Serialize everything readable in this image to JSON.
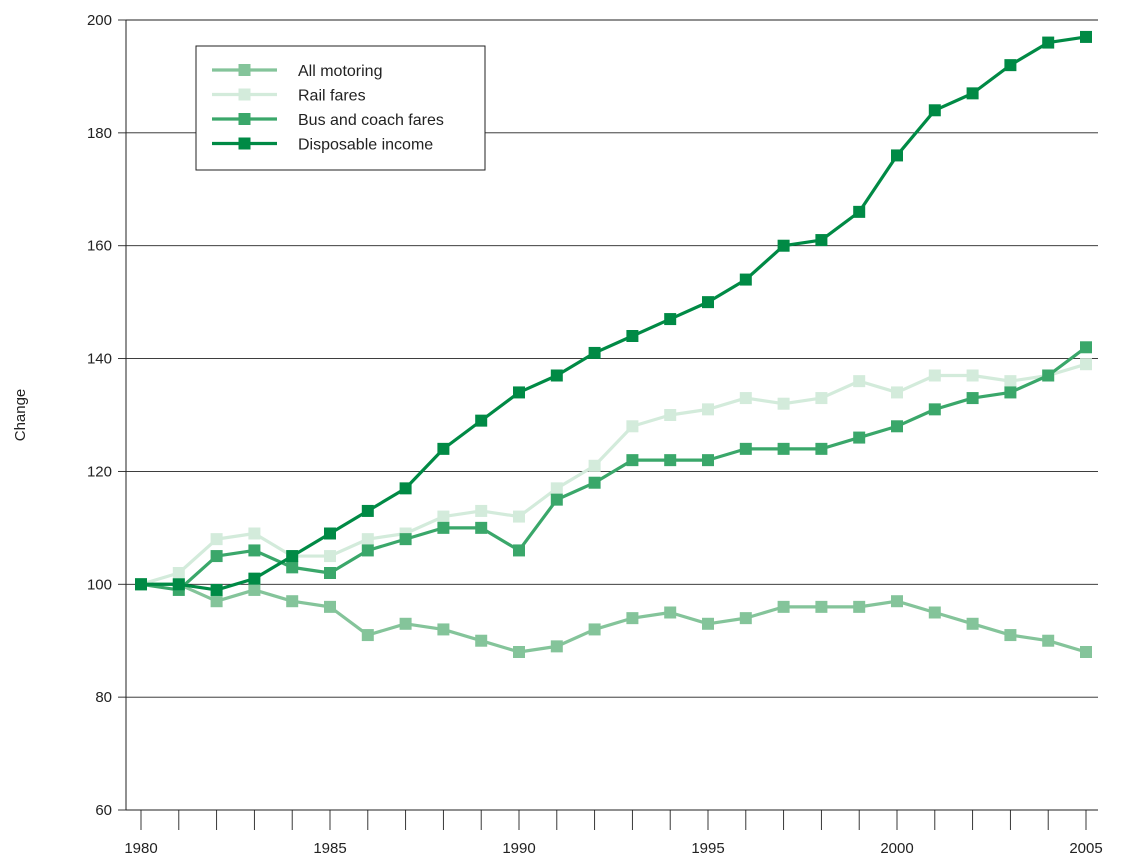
{
  "chart_data": {
    "type": "line",
    "title": "",
    "xlabel": "",
    "ylabel": "Change",
    "xlim": [
      1980,
      2005
    ],
    "ylim": [
      60,
      200
    ],
    "x_ticks": [
      1980,
      1985,
      1990,
      1995,
      2000,
      2005
    ],
    "y_ticks": [
      60,
      80,
      100,
      120,
      140,
      160,
      180,
      200
    ],
    "grid": "horizontal",
    "legend_position": "top-left",
    "x": [
      1980,
      1981,
      1982,
      1983,
      1984,
      1985,
      1986,
      1987,
      1988,
      1989,
      1990,
      1991,
      1992,
      1993,
      1994,
      1995,
      1996,
      1997,
      1998,
      1999,
      2000,
      2001,
      2002,
      2003,
      2004,
      2005
    ],
    "series": [
      {
        "name": "All motoring",
        "color": "#84c49a",
        "values": [
          100,
          100,
          97,
          99,
          97,
          96,
          91,
          93,
          92,
          90,
          88,
          89,
          92,
          94,
          95,
          93,
          94,
          96,
          96,
          96,
          97,
          95,
          93,
          91,
          90,
          88
        ]
      },
      {
        "name": "Rail fares",
        "color": "#d3ebdb",
        "values": [
          100,
          102,
          108,
          109,
          105,
          105,
          108,
          109,
          112,
          113,
          112,
          117,
          121,
          128,
          130,
          131,
          133,
          132,
          133,
          136,
          134,
          137,
          137,
          136,
          137,
          139
        ]
      },
      {
        "name": "Bus and coach fares",
        "color": "#3aa76a",
        "values": [
          100,
          99,
          105,
          106,
          103,
          102,
          106,
          108,
          110,
          110,
          106,
          115,
          118,
          122,
          122,
          122,
          124,
          124,
          124,
          126,
          128,
          131,
          133,
          134,
          137,
          142
        ]
      },
      {
        "name": "Disposable income",
        "color": "#008a45",
        "values": [
          100,
          100,
          99,
          101,
          105,
          109,
          113,
          117,
          124,
          129,
          134,
          137,
          141,
          144,
          147,
          150,
          154,
          160,
          161,
          166,
          176,
          184,
          187,
          192,
          196,
          197
        ]
      }
    ]
  }
}
